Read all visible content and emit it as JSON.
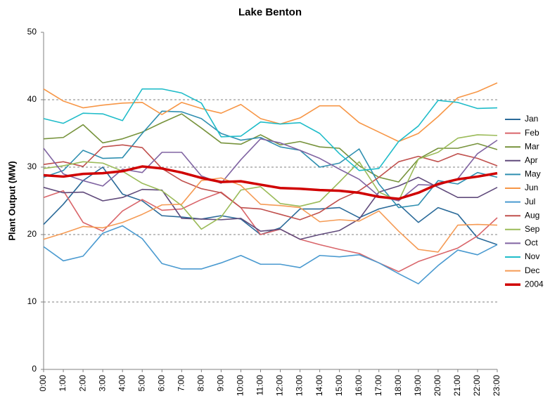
{
  "chart_data": {
    "type": "line",
    "title": "Lake Benton",
    "y_label": "Plant Output (MW)",
    "categories": [
      "0:00",
      "1:00",
      "2:00",
      "3:00",
      "4:00",
      "5:00",
      "6:00",
      "7:00",
      "8:00",
      "9:00",
      "10:00",
      "11:00",
      "12:00",
      "13:00",
      "14:00",
      "15:00",
      "16:00",
      "17:00",
      "18:00",
      "19:00",
      "20:00",
      "21:00",
      "22:00",
      "23:00"
    ],
    "ylim": [
      0,
      50
    ],
    "yticks": [
      0,
      10,
      20,
      30,
      40,
      50
    ],
    "grid": true,
    "legend": "right",
    "series": [
      {
        "name": "Jan",
        "color": "#2a6a99",
        "values": [
          21.5,
          24.5,
          28,
          30,
          26,
          25,
          22.8,
          22.6,
          22.3,
          22.8,
          22.3,
          20,
          21,
          23.8,
          23.8,
          24,
          22.5,
          23.8,
          24.5,
          21.8,
          24,
          23,
          19.5,
          18.5
        ]
      },
      {
        "name": "Feb",
        "color": "#d9656a",
        "values": [
          25.5,
          26.5,
          21.8,
          20.5,
          23.5,
          25.2,
          23.6,
          23.8,
          25.2,
          26.3,
          24,
          20,
          20.8,
          19.3,
          18.5,
          17.8,
          17.2,
          15.8,
          14.5,
          16,
          17,
          18,
          19.8,
          22.5
        ]
      },
      {
        "name": "Mar",
        "color": "#77933c",
        "values": [
          34.2,
          34.4,
          36.3,
          33.6,
          34.2,
          35.2,
          36.6,
          37.9,
          35.8,
          33.6,
          33.4,
          34.8,
          33.3,
          33.8,
          33,
          32.8,
          30.2,
          28.5,
          27.8,
          31.2,
          32.8,
          32.8,
          33.5,
          32.6
        ]
      },
      {
        "name": "Apr",
        "color": "#604a7b",
        "values": [
          27,
          26.2,
          26.3,
          25,
          25.5,
          26.7,
          26.6,
          22.4,
          22.3,
          22.2,
          22.4,
          20.5,
          20.8,
          19.3,
          20,
          20.6,
          22.3,
          26.3,
          27.2,
          28.5,
          27,
          25.5,
          25.5,
          27
        ]
      },
      {
        "name": "May",
        "color": "#2f8fb0",
        "values": [
          28.5,
          29.5,
          32.5,
          31.3,
          31.4,
          35,
          38.3,
          38.2,
          37.2,
          35,
          34,
          34.4,
          33,
          32.5,
          30,
          30.6,
          32.7,
          27.5,
          24,
          24.4,
          28,
          27.5,
          29.2,
          28.5
        ]
      },
      {
        "name": "Jun",
        "color": "#f79646",
        "values": [
          41.6,
          39.8,
          38.8,
          39.2,
          39.5,
          39.6,
          37.8,
          39.6,
          38.7,
          38,
          39.3,
          37.2,
          36.4,
          37.3,
          39.1,
          39.1,
          36.6,
          35.2,
          33.8,
          35,
          37.5,
          40.3,
          41.2,
          42.5
        ]
      },
      {
        "name": "Jul",
        "color": "#4a9ad0",
        "values": [
          18.2,
          16.1,
          16.8,
          20.2,
          21.3,
          19.4,
          15.7,
          14.9,
          14.9,
          15.8,
          16.9,
          15.6,
          15.6,
          15.1,
          16.9,
          16.7,
          17,
          15.8,
          14.2,
          12.7,
          15.4,
          17.7,
          17,
          18.5
        ]
      },
      {
        "name": "Aug",
        "color": "#c0504d",
        "values": [
          30.4,
          30.8,
          30.1,
          33,
          33.3,
          32.9,
          29.8,
          28,
          26.8,
          26.2,
          24,
          23.8,
          23,
          22.2,
          23.3,
          25.2,
          26.5,
          28.5,
          30.8,
          31.6,
          30.8,
          32,
          31.3,
          30.2
        ]
      },
      {
        "name": "Sep",
        "color": "#9bbb59",
        "values": [
          29.8,
          30.2,
          30.8,
          30.6,
          29.4,
          27.6,
          26.5,
          24.3,
          20.8,
          22.6,
          26.6,
          27.1,
          24.6,
          24.2,
          24.9,
          27.8,
          30.8,
          26.3,
          25,
          31.2,
          32.2,
          34.3,
          34.8,
          34.7
        ]
      },
      {
        "name": "Oct",
        "color": "#8064a2",
        "values": [
          32.8,
          29,
          28,
          27.2,
          29.7,
          29.2,
          32.2,
          32.2,
          28.7,
          27.6,
          31.1,
          34.2,
          33.6,
          32.5,
          31.3,
          29.7,
          28.2,
          25.7,
          25,
          27.4,
          27.3,
          28.3,
          32,
          34
        ]
      },
      {
        "name": "Nov",
        "color": "#1fbcc9",
        "values": [
          37.2,
          36.5,
          38,
          37.9,
          36.9,
          41.6,
          41.6,
          41,
          39.5,
          34.5,
          34.6,
          36.7,
          36.4,
          36.6,
          35,
          32,
          29.5,
          29.8,
          33.8,
          36.1,
          39.9,
          39.6,
          38.7,
          38.8
        ]
      },
      {
        "name": "Dec",
        "color": "#f59b55",
        "values": [
          19.3,
          20.2,
          21.2,
          21,
          21.8,
          23,
          24.4,
          24.5,
          28,
          28.4,
          27.3,
          24.5,
          24.3,
          24,
          21.9,
          22.2,
          22,
          23.5,
          20.5,
          17.8,
          17.4,
          21.4,
          21.5,
          21.4
        ]
      },
      {
        "name": "2004",
        "color": "#d00000",
        "line_width": 3.5,
        "values": [
          28.8,
          28.6,
          29,
          29.1,
          29.4,
          30.1,
          29.8,
          29.2,
          28.4,
          27.8,
          27.9,
          27.4,
          26.9,
          26.8,
          26.6,
          26.5,
          26.2,
          25.6,
          25.3,
          26.2,
          27.5,
          28.2,
          28.6,
          29.1
        ]
      }
    ]
  }
}
